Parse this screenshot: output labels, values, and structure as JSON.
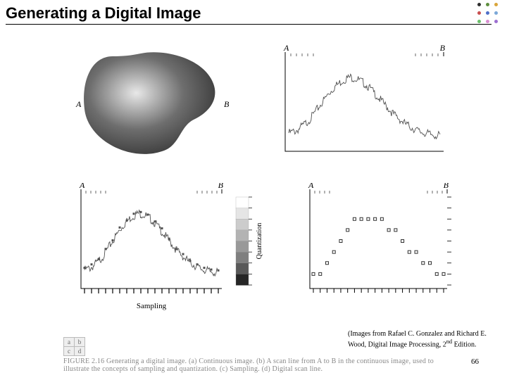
{
  "title": "Generating a Digital Image",
  "credit_line1": "(Images from Rafael C. Gonzalez and Richard E.",
  "credit_line2": "Wood, Digital Image Processing, 2",
  "credit_sup": "nd",
  "credit_line3": " Edition.",
  "page_number": "66",
  "figure_caption": "FIGURE 2.16   Generating a digital image. (a) Continuous image. (b) A scan line from A to B in the continuous image, used to illustrate the concepts of sampling and quantization. (c) Sampling. (d) Digital scan line.",
  "dots_colors": [
    "#2e2e2e",
    "#5e8f3e",
    "#d9a53b",
    "#c94f4f",
    "#4f6fc9",
    "#7ca8d8",
    "#6bbf6b",
    "#d98fd1",
    "#9d6fd1"
  ],
  "panel_a": {
    "label_left": "A",
    "label_right": "B",
    "blob_fill": "#6e6e6e",
    "blob_shadow": "#3a3a3a",
    "blob_highlight": "#e8e8e8",
    "bg": "#ffffff",
    "frame": "#bfbfbf"
  },
  "panel_b": {
    "label_left": "A",
    "label_right": "B",
    "axis_color": "#000000",
    "signal_color": "#505050",
    "signal": [
      0.2,
      0.21,
      0.22,
      0.24,
      0.27,
      0.3,
      0.33,
      0.37,
      0.42,
      0.47,
      0.52,
      0.57,
      0.62,
      0.67,
      0.71,
      0.75,
      0.78,
      0.81,
      0.83,
      0.85,
      0.86,
      0.85,
      0.84,
      0.82,
      0.8,
      0.77,
      0.74,
      0.7,
      0.66,
      0.62,
      0.58,
      0.54,
      0.5,
      0.46,
      0.42,
      0.39,
      0.36,
      0.33,
      0.3,
      0.28,
      0.26,
      0.24,
      0.22,
      0.21,
      0.2,
      0.19,
      0.18,
      0.18,
      0.17,
      0.17
    ],
    "noise_amp": 0.05
  },
  "panel_c": {
    "label_left": "A",
    "label_right": "B",
    "axis_color": "#000000",
    "signal_color": "#505050",
    "sampling_label": "Sampling",
    "quant_label": "Quantization",
    "n_samples": 20,
    "gray_levels": 8,
    "gray_bar_colors": [
      "#ffffff",
      "#e5e5e5",
      "#cccccc",
      "#b3b3b3",
      "#999999",
      "#7f7f7f",
      "#595959",
      "#262626"
    ],
    "tick_color": "#000000",
    "signal": [
      0.2,
      0.21,
      0.22,
      0.24,
      0.27,
      0.3,
      0.33,
      0.37,
      0.42,
      0.47,
      0.52,
      0.57,
      0.62,
      0.67,
      0.71,
      0.75,
      0.78,
      0.81,
      0.83,
      0.85,
      0.86,
      0.85,
      0.84,
      0.82,
      0.8,
      0.77,
      0.74,
      0.7,
      0.66,
      0.62,
      0.58,
      0.54,
      0.5,
      0.46,
      0.42,
      0.39,
      0.36,
      0.33,
      0.3,
      0.28,
      0.26,
      0.24,
      0.22,
      0.21,
      0.2,
      0.19,
      0.18,
      0.18,
      0.17,
      0.17
    ],
    "noise_amp": 0.05
  },
  "panel_d": {
    "label_left": "A",
    "label_right": "B",
    "axis_color": "#000000",
    "marker_color": "#303030",
    "n_samples": 20,
    "gray_levels": 8,
    "quantized_levels": [
      1,
      1,
      2,
      3,
      4,
      5,
      6,
      6,
      6,
      6,
      6,
      5,
      5,
      4,
      3,
      3,
      2,
      2,
      1,
      1
    ]
  },
  "key_labels": [
    [
      "a",
      "b"
    ],
    [
      "c",
      "d"
    ]
  ]
}
